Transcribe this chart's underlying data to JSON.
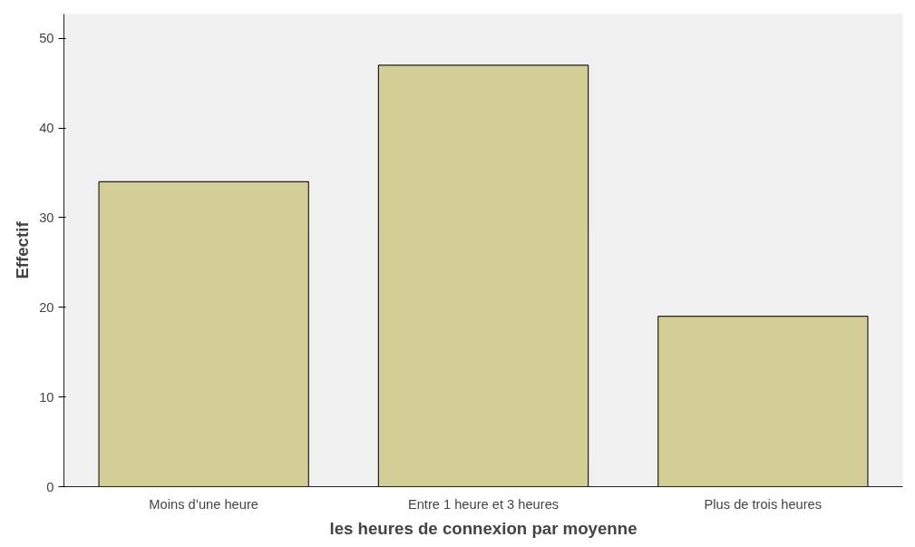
{
  "chart_data": {
    "type": "bar",
    "xlabel": "les heures de connexion par moyenne",
    "ylabel": "Effectif",
    "categories": [
      "Moins d’une heure",
      "Entre 1 heure et 3 heures",
      "Plus de trois heures"
    ],
    "values": [
      34,
      47,
      19
    ],
    "color": "#d3cd96",
    "ylim": [
      0,
      52.7
    ],
    "yticks": [
      0,
      10,
      20,
      30,
      40,
      50
    ],
    "grid": false
  }
}
